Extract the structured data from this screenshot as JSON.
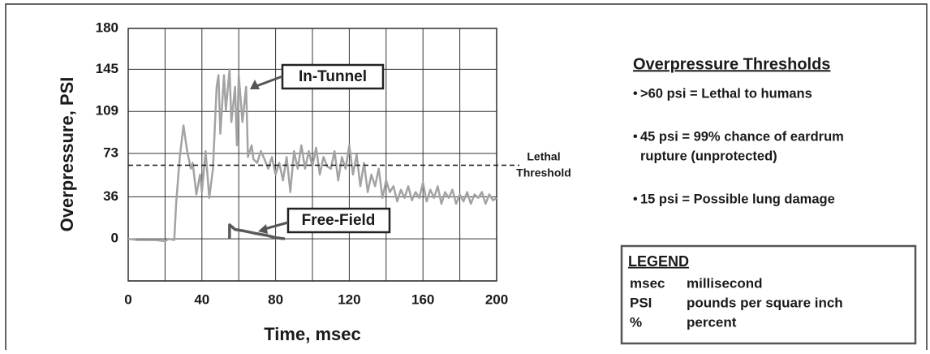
{
  "chart_data": {
    "type": "line",
    "xlabel": "Time, msec",
    "ylabel": "Overpressure, PSI",
    "xlim": [
      0,
      200
    ],
    "ylim": [
      -36,
      180
    ],
    "xticks": [
      0,
      40,
      80,
      120,
      160,
      200
    ],
    "xminor": [
      20,
      60,
      100,
      140,
      180
    ],
    "yticks": [
      0,
      36,
      73,
      109,
      145,
      180
    ],
    "grid": true,
    "threshold": {
      "value": 63,
      "label": [
        "Lethal",
        "Threshold"
      ]
    },
    "series": [
      {
        "name": "In-Tunnel",
        "color": "#a3a3a3",
        "x": [
          0,
          5,
          10,
          15,
          20,
          22,
          25,
          26,
          28,
          30,
          32,
          34,
          35,
          37,
          39,
          40,
          42,
          44,
          46,
          48,
          49,
          50,
          52,
          53,
          55,
          56,
          58,
          59,
          60,
          62,
          64,
          65,
          67,
          68,
          70,
          72,
          74,
          76,
          78,
          80,
          82,
          84,
          86,
          88,
          90,
          92,
          94,
          96,
          98,
          100,
          102,
          104,
          106,
          108,
          110,
          112,
          114,
          116,
          118,
          120,
          122,
          124,
          126,
          128,
          130,
          132,
          134,
          136,
          138,
          140,
          142,
          144,
          146,
          148,
          150,
          152,
          154,
          156,
          158,
          160,
          162,
          164,
          166,
          168,
          170,
          172,
          174,
          176,
          178,
          180,
          182,
          184,
          186,
          188,
          190,
          192,
          194,
          196,
          198,
          200
        ],
        "values": [
          0,
          -1,
          -1,
          -1,
          -2,
          0,
          -1,
          30,
          70,
          97,
          75,
          60,
          65,
          38,
          55,
          40,
          75,
          35,
          60,
          130,
          140,
          90,
          140,
          110,
          145,
          100,
          130,
          80,
          140,
          100,
          130,
          70,
          80,
          68,
          65,
          75,
          68,
          60,
          70,
          55,
          65,
          50,
          70,
          40,
          75,
          60,
          80,
          60,
          75,
          62,
          78,
          55,
          70,
          62,
          60,
          75,
          50,
          70,
          60,
          80,
          55,
          72,
          45,
          65,
          40,
          55,
          45,
          60,
          35,
          50,
          40,
          45,
          32,
          42,
          35,
          45,
          33,
          40,
          35,
          48,
          32,
          42,
          35,
          45,
          30,
          40,
          35,
          42,
          30,
          38,
          32,
          40,
          30,
          38,
          35,
          40,
          30,
          38,
          33,
          35
        ]
      },
      {
        "name": "Free-Field",
        "color": "#5a5a5a",
        "x": [
          55,
          55,
          58,
          62,
          68,
          75,
          80,
          85
        ],
        "values": [
          0,
          12,
          8,
          7,
          5,
          3,
          1,
          0
        ]
      }
    ]
  },
  "thresholds": {
    "title": "Overpressure Thresholds",
    "items": [
      [
        ">60 psi = Lethal to humans"
      ],
      [
        "45 psi = 99% chance of eardrum",
        "rupture (unprotected)"
      ],
      [
        "15 psi = Possible lung damage"
      ]
    ]
  },
  "legend": {
    "title": "LEGEND",
    "rows": [
      [
        "msec",
        "millisecond"
      ],
      [
        "PSI",
        "pounds per square inch"
      ],
      [
        "%",
        "percent"
      ]
    ]
  }
}
